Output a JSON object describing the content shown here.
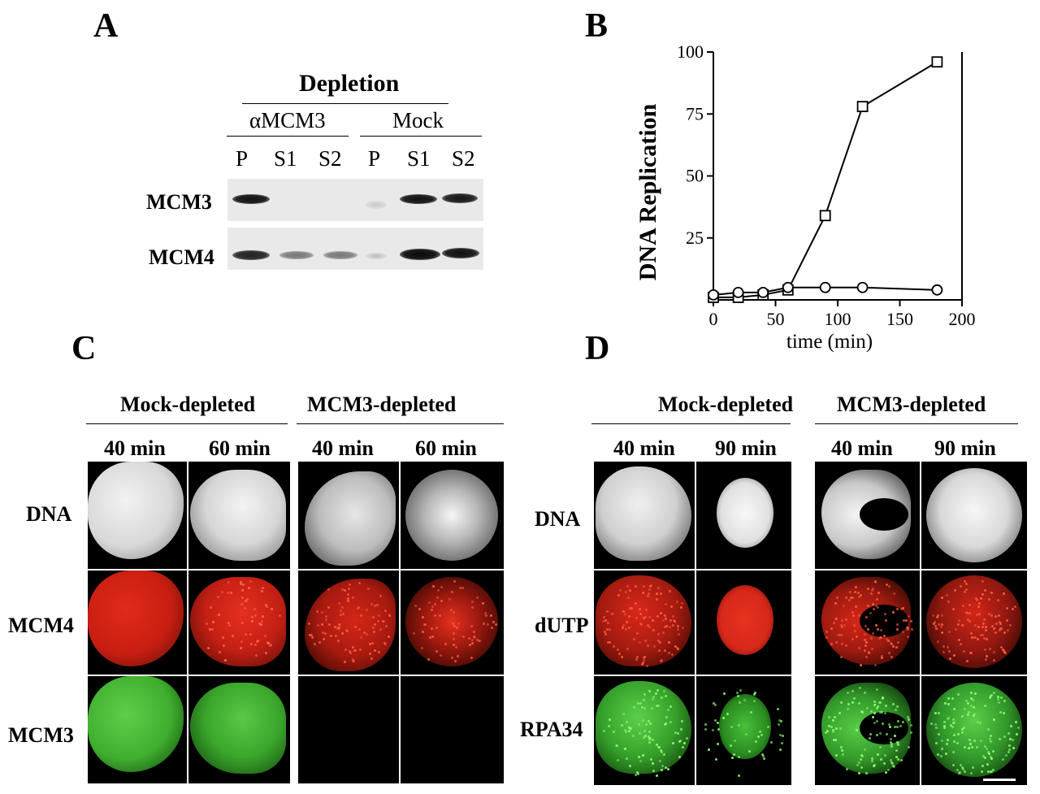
{
  "panelA": {
    "letter": "A",
    "header": "Depletion",
    "groups": [
      "αMCM3",
      "Mock"
    ],
    "lanes": [
      "P",
      "S1",
      "S2",
      "P",
      "S1",
      "S2"
    ],
    "rows": [
      "MCM3",
      "MCM4"
    ]
  },
  "panelB": {
    "letter": "B",
    "chart_data": {
      "type": "line",
      "xlabel": "time (min)",
      "ylabel": "DNA Replication",
      "xlim": [
        0,
        200
      ],
      "ylim": [
        0,
        100
      ],
      "xticks": [
        "0",
        "50",
        "100",
        "150",
        "200"
      ],
      "yticks": [
        "100",
        "75",
        "50",
        "25"
      ],
      "series": [
        {
          "marker": "square",
          "x": [
            0,
            20,
            40,
            60,
            90,
            120,
            180
          ],
          "y": [
            1,
            1,
            2,
            4,
            34,
            78,
            96
          ]
        },
        {
          "marker": "circle",
          "x": [
            0,
            20,
            40,
            60,
            90,
            120,
            180
          ],
          "y": [
            2,
            3,
            3,
            5,
            5,
            5,
            4
          ]
        }
      ]
    }
  },
  "panelC": {
    "letter": "C",
    "groups": [
      "Mock-depleted",
      "MCM3-depleted"
    ],
    "times": [
      "40 min",
      "60 min",
      "40 min",
      "60 min"
    ],
    "rows": [
      "DNA",
      "MCM4",
      "MCM3"
    ]
  },
  "panelD": {
    "letter": "D",
    "groups": [
      "Mock-depleted",
      "MCM3-depleted"
    ],
    "times": [
      "40 min",
      "90 min",
      "40 min",
      "90 min"
    ],
    "rows": [
      "DNA",
      "dUTP",
      "RPA34"
    ]
  }
}
